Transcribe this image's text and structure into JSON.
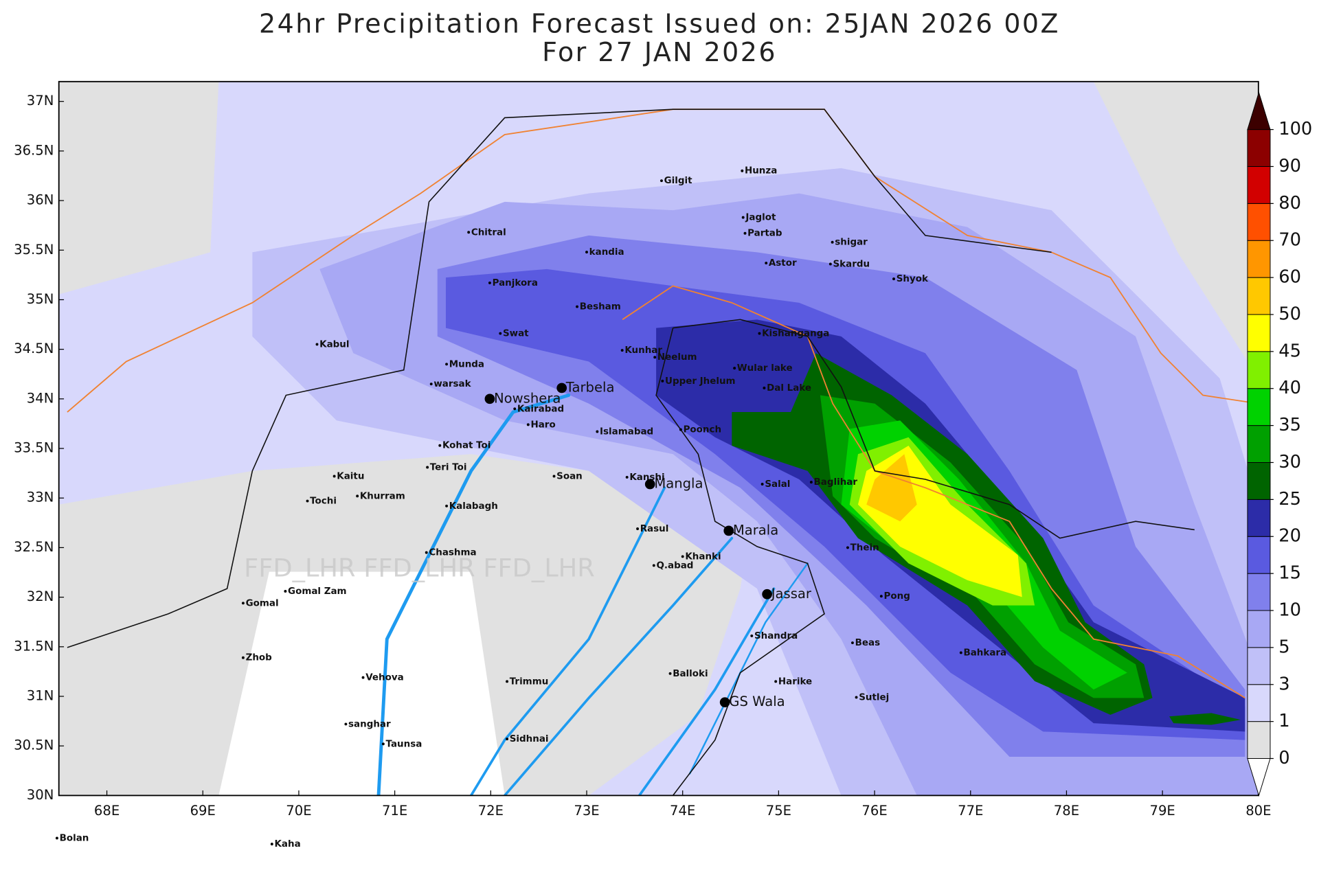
{
  "map_data": {
    "title": "24hr Precipitation Forecast Issued on:  25JAN 2026 00Z",
    "subtitle": "For 27 JAN 2026",
    "watermark": "FFD_LHR FFD_LHR FFD_LHR",
    "xlim": [
      67.5,
      80
    ],
    "ylim": [
      30,
      37.2
    ],
    "xticks": [
      {
        "value": 68,
        "label": "68E"
      },
      {
        "value": 69,
        "label": "69E"
      },
      {
        "value": 70,
        "label": "70E"
      },
      {
        "value": 71,
        "label": "71E"
      },
      {
        "value": 72,
        "label": "72E"
      },
      {
        "value": 73,
        "label": "73E"
      },
      {
        "value": 74,
        "label": "74E"
      },
      {
        "value": 75,
        "label": "75E"
      },
      {
        "value": 76,
        "label": "76E"
      },
      {
        "value": 77,
        "label": "77E"
      },
      {
        "value": 78,
        "label": "78E"
      },
      {
        "value": 79,
        "label": "79E"
      },
      {
        "value": 80,
        "label": "80E"
      }
    ],
    "yticks": [
      {
        "value": 30,
        "label": "30N"
      },
      {
        "value": 30.5,
        "label": "30.5N"
      },
      {
        "value": 31,
        "label": "31N"
      },
      {
        "value": 31.5,
        "label": "31.5N"
      },
      {
        "value": 32,
        "label": "32N"
      },
      {
        "value": 32.5,
        "label": "32.5N"
      },
      {
        "value": 33,
        "label": "33N"
      },
      {
        "value": 33.5,
        "label": "33.5N"
      },
      {
        "value": 34,
        "label": "34N"
      },
      {
        "value": 34.5,
        "label": "34.5N"
      },
      {
        "value": 35,
        "label": "35N"
      },
      {
        "value": 35.5,
        "label": "35.5N"
      },
      {
        "value": 36,
        "label": "36N"
      },
      {
        "value": 36.5,
        "label": "36.5N"
      },
      {
        "value": 37,
        "label": "37N"
      }
    ],
    "colorbar": {
      "levels": [
        0,
        1,
        3,
        5,
        10,
        15,
        20,
        25,
        30,
        35,
        40,
        45,
        50,
        60,
        70,
        80,
        90,
        100
      ],
      "colors": [
        "#e1e1e1",
        "#d8d8fc",
        "#c0c0f8",
        "#a8a8f4",
        "#8080ec",
        "#5a5ae0",
        "#2c2ca8",
        "#006400",
        "#00a000",
        "#00d200",
        "#80f000",
        "#ffff00",
        "#ffc800",
        "#ff9600",
        "#ff5000",
        "#d20000",
        "#8c0000"
      ],
      "under_color": "#ffffff",
      "over_color": "#3c0000"
    },
    "cities": [
      {
        "name": "Gilgit",
        "lon": 73.78,
        "lat": 36.2
      },
      {
        "name": "Hunza",
        "lon": 74.62,
        "lat": 36.3
      },
      {
        "name": "Chitral",
        "lon": 71.77,
        "lat": 35.68
      },
      {
        "name": "Jaglot",
        "lon": 74.63,
        "lat": 35.83
      },
      {
        "name": "Partab",
        "lon": 74.65,
        "lat": 35.67
      },
      {
        "name": "shigar",
        "lon": 75.56,
        "lat": 35.58
      },
      {
        "name": "kandia",
        "lon": 73.0,
        "lat": 35.48
      },
      {
        "name": "Astor",
        "lon": 74.87,
        "lat": 35.37
      },
      {
        "name": "Skardu",
        "lon": 75.54,
        "lat": 35.36
      },
      {
        "name": "Panjkora",
        "lon": 71.99,
        "lat": 35.17
      },
      {
        "name": "Shyok",
        "lon": 76.2,
        "lat": 35.21
      },
      {
        "name": "Besham",
        "lon": 72.9,
        "lat": 34.93
      },
      {
        "name": "Kabul",
        "lon": 70.19,
        "lat": 34.55
      },
      {
        "name": "Swat",
        "lon": 72.1,
        "lat": 34.66
      },
      {
        "name": "Kishanganga",
        "lon": 74.8,
        "lat": 34.66
      },
      {
        "name": "Kunhar",
        "lon": 73.37,
        "lat": 34.49
      },
      {
        "name": "Neelum",
        "lon": 73.71,
        "lat": 34.42
      },
      {
        "name": "Munda",
        "lon": 71.54,
        "lat": 34.35
      },
      {
        "name": "Wular lake",
        "lon": 74.54,
        "lat": 34.31
      },
      {
        "name": "Upper Jhelum",
        "lon": 73.79,
        "lat": 34.18
      },
      {
        "name": "warsak",
        "lon": 71.38,
        "lat": 34.15
      },
      {
        "name": "Dal Lake",
        "lon": 74.85,
        "lat": 34.11
      },
      {
        "name": "Nowshera",
        "lon": 71.99,
        "lat": 34.0,
        "major": true
      },
      {
        "name": "Tarbela",
        "lon": 72.74,
        "lat": 34.11,
        "major": true
      },
      {
        "name": "Kairabad",
        "lon": 72.25,
        "lat": 33.9
      },
      {
        "name": "Haro",
        "lon": 72.39,
        "lat": 33.74
      },
      {
        "name": "Islamabad",
        "lon": 73.11,
        "lat": 33.67
      },
      {
        "name": "Poonch",
        "lon": 73.98,
        "lat": 33.69
      },
      {
        "name": "Kohat Toi",
        "lon": 71.47,
        "lat": 33.53
      },
      {
        "name": "Teri Toi",
        "lon": 71.34,
        "lat": 33.31
      },
      {
        "name": "Soan",
        "lon": 72.66,
        "lat": 33.22
      },
      {
        "name": "Kaitu",
        "lon": 70.37,
        "lat": 33.22
      },
      {
        "name": "Salal",
        "lon": 74.83,
        "lat": 33.14
      },
      {
        "name": "Baglihar",
        "lon": 75.34,
        "lat": 33.16
      },
      {
        "name": "Kanshi",
        "lon": 73.42,
        "lat": 33.21
      },
      {
        "name": "Mangla",
        "lon": 73.66,
        "lat": 33.14,
        "major": true
      },
      {
        "name": "Tochi",
        "lon": 70.09,
        "lat": 32.97
      },
      {
        "name": "Khurram",
        "lon": 70.61,
        "lat": 33.02
      },
      {
        "name": "Kalabagh",
        "lon": 71.54,
        "lat": 32.92
      },
      {
        "name": "Rasul",
        "lon": 73.53,
        "lat": 32.69
      },
      {
        "name": "Marala",
        "lon": 74.48,
        "lat": 32.67,
        "major": true
      },
      {
        "name": "Chashma",
        "lon": 71.33,
        "lat": 32.45
      },
      {
        "name": "Thein",
        "lon": 75.72,
        "lat": 32.5
      },
      {
        "name": "Khanki",
        "lon": 74.0,
        "lat": 32.41
      },
      {
        "name": "Q.abad",
        "lon": 73.7,
        "lat": 32.32
      },
      {
        "name": "Gomal Zam",
        "lon": 69.86,
        "lat": 32.06
      },
      {
        "name": "Pong",
        "lon": 76.07,
        "lat": 32.01
      },
      {
        "name": "Jassar",
        "lon": 74.88,
        "lat": 32.03,
        "major": true
      },
      {
        "name": "Gomal",
        "lon": 69.42,
        "lat": 31.94
      },
      {
        "name": "Shandra",
        "lon": 74.72,
        "lat": 31.61
      },
      {
        "name": "Beas",
        "lon": 75.77,
        "lat": 31.54
      },
      {
        "name": "Bahkara",
        "lon": 76.9,
        "lat": 31.44
      },
      {
        "name": "Zhob",
        "lon": 69.42,
        "lat": 31.39
      },
      {
        "name": "Vehova",
        "lon": 70.67,
        "lat": 31.19
      },
      {
        "name": "Balloki",
        "lon": 73.87,
        "lat": 31.23
      },
      {
        "name": "Trimmu",
        "lon": 72.17,
        "lat": 31.15
      },
      {
        "name": "Harike",
        "lon": 74.97,
        "lat": 31.15
      },
      {
        "name": "Sutlej",
        "lon": 75.81,
        "lat": 30.99
      },
      {
        "name": "GS Wala",
        "lon": 74.44,
        "lat": 30.94,
        "major": true
      },
      {
        "name": "sanghar",
        "lon": 70.49,
        "lat": 30.72
      },
      {
        "name": "Taunsa",
        "lon": 70.88,
        "lat": 30.52
      },
      {
        "name": "Sidhnai",
        "lon": 72.17,
        "lat": 30.57
      },
      {
        "name": "Bolan",
        "lon": 67.48,
        "lat": 29.57
      },
      {
        "name": "Kaha",
        "lon": 69.72,
        "lat": 29.51
      }
    ]
  }
}
